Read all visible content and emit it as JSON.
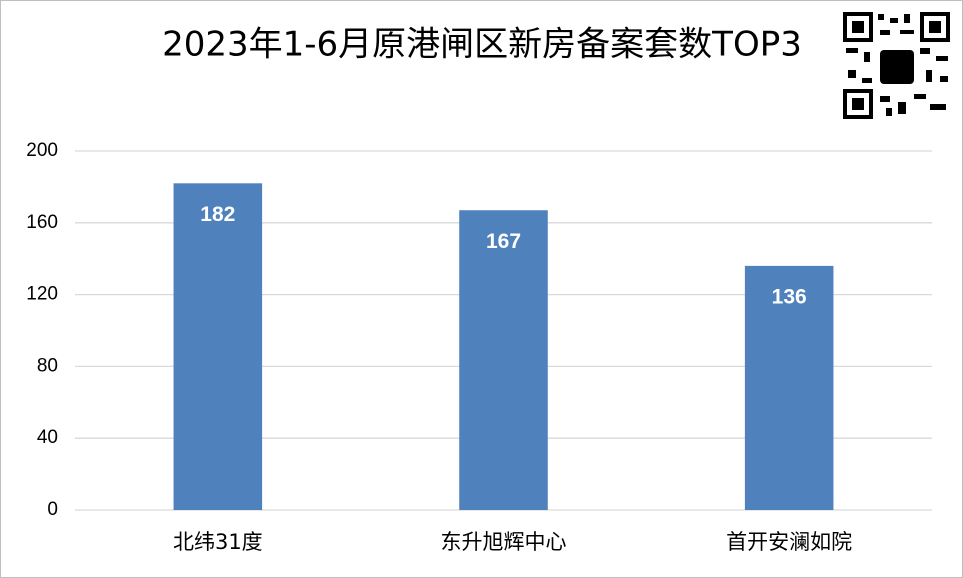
{
  "chart_data": {
    "type": "bar",
    "title": "2023年1-6月原港闸区新房备案套数TOP3",
    "categories": [
      "北纬31度",
      "东升旭辉中心",
      "首开安澜如院"
    ],
    "values": [
      182,
      167,
      136
    ],
    "color": "#4f81bd",
    "ylim": [
      0,
      200
    ],
    "yticks": [
      0,
      40,
      80,
      120,
      160,
      200
    ],
    "grid": true
  }
}
